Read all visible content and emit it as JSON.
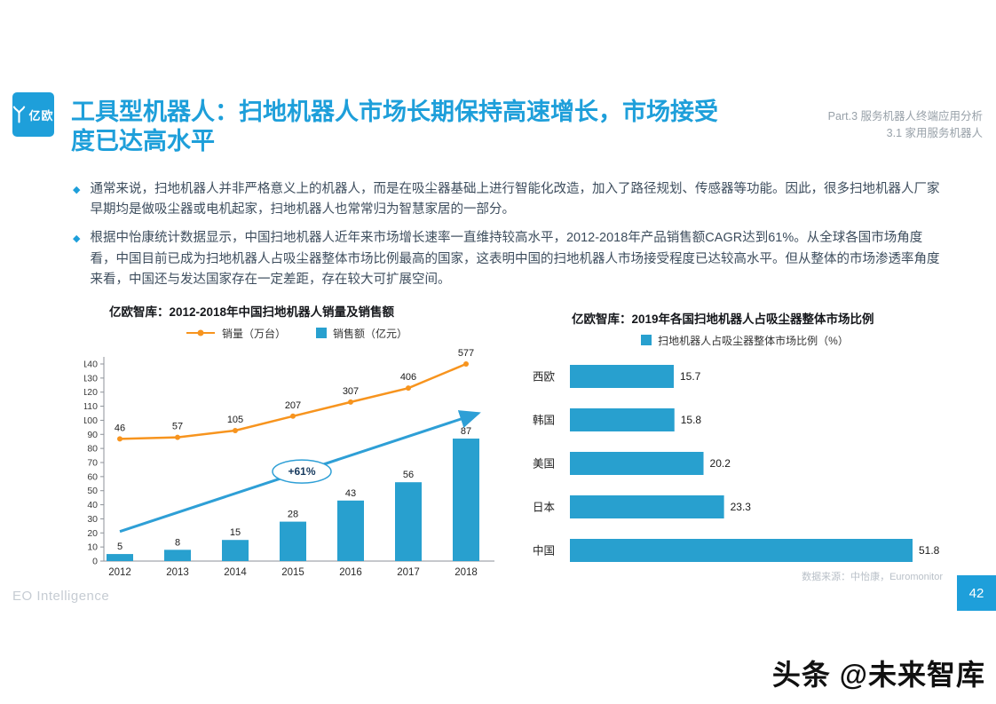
{
  "accent": "#1e9fda",
  "logo": {
    "brand": "亿欧"
  },
  "header": {
    "title": "工具型机器人：扫地机器人市场长期保持高速增长，市场接受度已达高水平",
    "part_line1": "Part.3 服务机器人终端应用分析",
    "part_line2": "3.1 家用服务机器人"
  },
  "bullets": [
    "通常来说，扫地机器人并非严格意义上的机器人，而是在吸尘器基础上进行智能化改造，加入了路径规划、传感器等功能。因此，很多扫地机器人厂家早期均是做吸尘器或电机起家，扫地机器人也常常归为智慧家居的一部分。",
    "根据中怡康统计数据显示，中国扫地机器人近年来市场增长速率一直维持较高水平，2012-2018年产品销售额CAGR达到61%。从全球各国市场角度看，中国目前已成为扫地机器人占吸尘器整体市场比例最高的国家，这表明中国的扫地机器人市场接受程度已达较高水平。但从整体的市场渗透率角度来看，中国还与发达国家存在一定差距，存在较大可扩展空间。"
  ],
  "chart_data": [
    {
      "type": "combo",
      "title": "亿欧智库：2012-2018年中国扫地机器人销量及销售额",
      "categories": [
        "2012",
        "2013",
        "2014",
        "2015",
        "2016",
        "2017",
        "2018"
      ],
      "series": [
        {
          "name": "销量（万台）",
          "type": "line",
          "color": "#f7941e",
          "values": [
            46,
            57,
            105,
            207,
            307,
            406,
            577
          ]
        },
        {
          "name": "销售额（亿元）",
          "type": "bar",
          "color": "#28a0cf",
          "values": [
            5,
            8,
            15,
            28,
            43,
            56,
            87
          ]
        }
      ],
      "ylim": [
        0,
        140
      ],
      "ytick_step": 10,
      "annotation": "+61%",
      "trend_color": "#2e9fd6",
      "legend_position": "top",
      "grid": false
    },
    {
      "type": "bar-horizontal",
      "title": "亿欧智库：2019年各国扫地机器人占吸尘器整体市场比例",
      "legend": "扫地机器人占吸尘器整体市场比例（%）",
      "categories": [
        "西欧",
        "韩国",
        "美国",
        "日本",
        "中国"
      ],
      "values": [
        15.7,
        15.8,
        20.2,
        23.3,
        51.8
      ],
      "color": "#28a0cf",
      "xlim": [
        0,
        55
      ],
      "grid": false
    }
  ],
  "footer": {
    "source_note": "数据来源：中怡康，Euromonitor",
    "brand": "EO Intelligence",
    "page_number": "42",
    "watermark": "头条 @未来智库"
  }
}
